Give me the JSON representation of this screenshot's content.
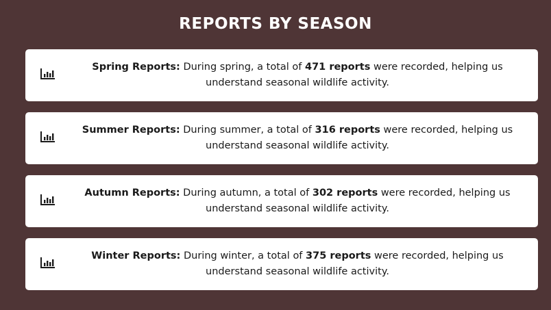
{
  "page_title": "REPORTS BY SEASON",
  "common": {
    "text_before_count": "During {season}, a total of",
    "reports_word": "reports",
    "text_after_count": "were recorded, helping us understand seasonal wildlife activity."
  },
  "cards": [
    {
      "label": "Spring Reports:",
      "sentence_start": "During spring, a total of",
      "count": "471 reports",
      "sentence_end": "were recorded, helping us understand seasonal wildlife activity.",
      "icon": "bar-chart-icon"
    },
    {
      "label": "Summer Reports:",
      "sentence_start": "During summer, a total of",
      "count": "316 reports",
      "sentence_end": "were recorded, helping us understand seasonal wildlife activity.",
      "icon": "bar-chart-icon"
    },
    {
      "label": "Autumn Reports:",
      "sentence_start": "During autumn, a total of",
      "count": "302 reports",
      "sentence_end": "were recorded, helping us understand seasonal wildlife activity.",
      "icon": "bar-chart-icon"
    },
    {
      "label": "Winter Reports:",
      "sentence_start": "During winter, a total of",
      "count": "375 reports",
      "sentence_end": "were recorded, helping us understand seasonal wildlife activity.",
      "icon": "bar-chart-icon"
    }
  ],
  "colors": {
    "background": "#4f3536",
    "card": "#ffffff",
    "text": "#1a1a1a",
    "title": "#ffffff"
  }
}
